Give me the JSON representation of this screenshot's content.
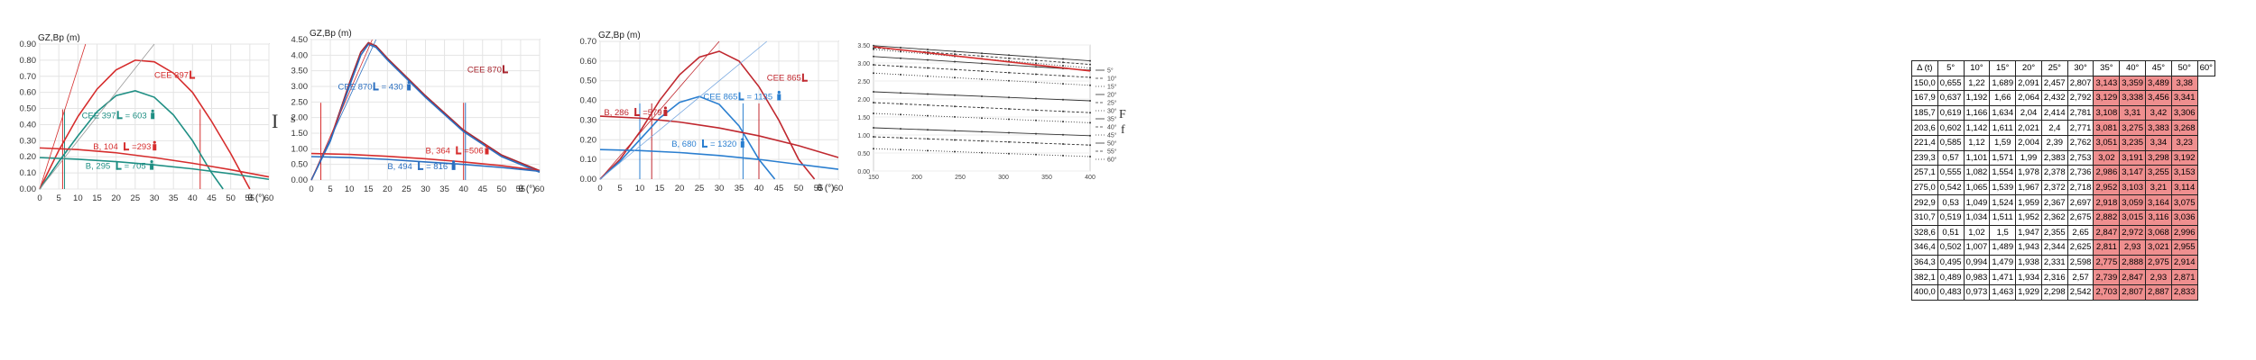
{
  "chart_data": [
    {
      "type": "line",
      "ylabel": "GZ,Bp (m)",
      "xlabel": "θ (°)",
      "xlim": [
        0,
        60
      ],
      "ylim": [
        0,
        0.9
      ],
      "xticks": [
        0,
        5,
        10,
        15,
        20,
        25,
        30,
        35,
        40,
        45,
        50,
        55,
        60
      ],
      "yticks": [
        0,
        0.1,
        0.2,
        0.3,
        0.4,
        0.5,
        0.6,
        0.7,
        0.8,
        0.9
      ],
      "ytick_labels": [
        "0.00",
        "0.10",
        "0.20",
        "0.30",
        "0.40",
        "0.50",
        "0.60",
        "0.70",
        "0.80",
        "0.90"
      ],
      "series": [
        {
          "color": "#d62d2d",
          "x": [
            0,
            5,
            10,
            15,
            20,
            25,
            30,
            35,
            40,
            45,
            50,
            55
          ],
          "y": [
            0,
            0.24,
            0.45,
            0.62,
            0.74,
            0.8,
            0.79,
            0.72,
            0.6,
            0.42,
            0.22,
            0
          ]
        },
        {
          "color": "#1f8f84",
          "x": [
            0,
            5,
            10,
            15,
            20,
            25,
            30,
            35,
            40,
            45,
            48
          ],
          "y": [
            0,
            0.17,
            0.33,
            0.48,
            0.58,
            0.61,
            0.57,
            0.46,
            0.3,
            0.1,
            0
          ]
        },
        {
          "color": "#d62d2d",
          "x": [
            0,
            10,
            20,
            30,
            40,
            50,
            60
          ],
          "y": [
            0.255,
            0.245,
            0.225,
            0.195,
            0.16,
            0.12,
            0.075
          ]
        },
        {
          "color": "#1f8f84",
          "x": [
            0,
            10,
            20,
            30,
            40,
            50,
            60
          ],
          "y": [
            0.195,
            0.185,
            0.17,
            0.15,
            0.125,
            0.095,
            0.06
          ]
        },
        {
          "color": "#d62d2d",
          "x": [
            0,
            12
          ],
          "y": [
            0,
            0.95
          ],
          "style": "thin"
        },
        {
          "color": "#999999",
          "x": [
            0,
            30
          ],
          "y": [
            0,
            0.95
          ],
          "style": "thin"
        }
      ],
      "verticals": [
        {
          "x": 6,
          "color": "#d62d2d"
        },
        {
          "x": 6.5,
          "color": "#1f8f84"
        },
        {
          "x": 42,
          "color": "#d62d2d"
        }
      ],
      "annotations": [
        {
          "text": "CEE 397",
          "x": 30,
          "y": 0.69,
          "color": "#d62d2d",
          "icon": "boat-left-icon"
        },
        {
          "text": "CEE 397",
          "x": 11,
          "y": 0.44,
          "color": "#1f8f84",
          "icon": "boat-left-icon",
          "suffix": "= 603",
          "suffix_icon": "person-icon"
        },
        {
          "text": "B, 104",
          "x": 14,
          "y": 0.245,
          "color": "#d62d2d",
          "icon": "boat-left-icon",
          "suffix": "=293",
          "suffix_icon": "person-icon"
        },
        {
          "text": "B, 295",
          "x": 12,
          "y": 0.125,
          "color": "#1f8f84",
          "icon": "boat-left-icon",
          "suffix": "= 705",
          "suffix_icon": "person-icon"
        }
      ]
    },
    {
      "type": "line",
      "ylabel": "GZ,Bp (m)",
      "xlabel": "θ (°)",
      "xlim": [
        0,
        60
      ],
      "ylim": [
        0,
        4.5
      ],
      "xticks": [
        0,
        5,
        10,
        15,
        20,
        25,
        30,
        35,
        40,
        45,
        50,
        55,
        60
      ],
      "yticks": [
        0,
        0.5,
        1,
        1.5,
        2,
        2.5,
        3,
        3.5,
        4,
        4.5
      ],
      "ytick_labels": [
        "0.00",
        "0.50",
        "1.00",
        "1.50",
        "2.00",
        "2.50",
        "3.00",
        "3.50",
        "4.00",
        "4.50"
      ],
      "series": [
        {
          "color": "#a8262f",
          "x": [
            0,
            5,
            10,
            13,
            15,
            17,
            20,
            25,
            30,
            40,
            50,
            60
          ],
          "y": [
            0,
            1.3,
            3.1,
            4.1,
            4.4,
            4.3,
            3.9,
            3.3,
            2.7,
            1.6,
            0.8,
            0.3
          ]
        },
        {
          "color": "#2b6fc0",
          "x": [
            0,
            5,
            10,
            13,
            15,
            17,
            20,
            25,
            30,
            40,
            50,
            60
          ],
          "y": [
            0,
            1.25,
            3.0,
            4.0,
            4.35,
            4.25,
            3.85,
            3.25,
            2.65,
            1.55,
            0.75,
            0.25
          ]
        },
        {
          "color": "#d62d2d",
          "x": [
            0,
            10,
            20,
            30,
            40,
            50,
            60
          ],
          "y": [
            0.85,
            0.82,
            0.76,
            0.68,
            0.58,
            0.46,
            0.3
          ]
        },
        {
          "color": "#2b6fc0",
          "x": [
            0,
            10,
            20,
            30,
            40,
            50,
            60
          ],
          "y": [
            0.75,
            0.72,
            0.66,
            0.58,
            0.5,
            0.4,
            0.28
          ]
        },
        {
          "color": "#d62d2d",
          "x": [
            0,
            16
          ],
          "y": [
            0,
            4.5
          ],
          "style": "thin"
        },
        {
          "color": "#2b6fc0",
          "x": [
            0,
            17
          ],
          "y": [
            0,
            4.5
          ],
          "style": "thin"
        }
      ],
      "verticals": [
        {
          "x": 2.5,
          "color": "#d62d2d"
        },
        {
          "x": 40,
          "color": "#d62d2d"
        },
        {
          "x": 40.5,
          "color": "#2b6fc0"
        }
      ],
      "annotations": [
        {
          "text": "CEE 870",
          "x": 7,
          "y": 2.9,
          "color": "#2b6fc0",
          "icon": "boat-left-icon",
          "suffix": "= 430",
          "suffix_icon": "person-icon"
        },
        {
          "text": "CEE 870",
          "x": 41,
          "y": 3.45,
          "color": "#a8262f",
          "icon": "boat-left-icon"
        },
        {
          "text": "B, 364",
          "x": 30,
          "y": 0.85,
          "color": "#d62d2d",
          "icon": "boat-left-icon",
          "suffix": "=506",
          "suffix_icon": "person-icon"
        },
        {
          "text": "B, 494",
          "x": 20,
          "y": 0.35,
          "color": "#2b6fc0",
          "icon": "boat-left-icon",
          "suffix": "= 816",
          "suffix_icon": "person-icon"
        }
      ]
    },
    {
      "type": "line",
      "ylabel": "GZ,Bp (m)",
      "xlabel": "θ (°)",
      "xlim": [
        0,
        60
      ],
      "ylim": [
        0,
        0.7
      ],
      "xticks": [
        0,
        5,
        10,
        15,
        20,
        25,
        30,
        35,
        40,
        45,
        50,
        55,
        60
      ],
      "yticks": [
        0,
        0.1,
        0.2,
        0.3,
        0.4,
        0.5,
        0.6,
        0.7
      ],
      "ytick_labels": [
        "0.00",
        "0.10",
        "0.20",
        "0.30",
        "0.40",
        "0.50",
        "0.60",
        "0.70"
      ],
      "series": [
        {
          "color": "#c0282f",
          "x": [
            0,
            5,
            10,
            15,
            20,
            25,
            30,
            35,
            40,
            45,
            50,
            54
          ],
          "y": [
            0,
            0.1,
            0.24,
            0.4,
            0.53,
            0.62,
            0.65,
            0.6,
            0.47,
            0.3,
            0.1,
            0
          ]
        },
        {
          "color": "#2b7fd0",
          "x": [
            0,
            5,
            10,
            15,
            20,
            25,
            30,
            35,
            40,
            44
          ],
          "y": [
            0,
            0.09,
            0.2,
            0.31,
            0.39,
            0.42,
            0.38,
            0.27,
            0.1,
            0
          ]
        },
        {
          "color": "#c0282f",
          "x": [
            0,
            10,
            20,
            30,
            40,
            50,
            60
          ],
          "y": [
            0.32,
            0.31,
            0.29,
            0.26,
            0.22,
            0.17,
            0.11
          ]
        },
        {
          "color": "#2b7fd0",
          "x": [
            0,
            10,
            20,
            30,
            40,
            50,
            60
          ],
          "y": [
            0.15,
            0.145,
            0.135,
            0.12,
            0.1,
            0.075,
            0.05
          ]
        },
        {
          "color": "#c0282f",
          "x": [
            0,
            30
          ],
          "y": [
            0,
            0.72
          ],
          "style": "thin"
        },
        {
          "color": "#7aa9e0",
          "x": [
            0,
            42
          ],
          "y": [
            0,
            0.72
          ],
          "style": "thin"
        }
      ],
      "verticals": [
        {
          "x": 10,
          "color": "#2b7fd0"
        },
        {
          "x": 13,
          "color": "#c0282f"
        },
        {
          "x": 40,
          "color": "#c0282f"
        },
        {
          "x": 36,
          "color": "#2b7fd0"
        }
      ],
      "annotations": [
        {
          "text": "CEE 865",
          "x": 42,
          "y": 0.5,
          "color": "#c0282f",
          "icon": "boat-left-icon"
        },
        {
          "text": "CEE 865",
          "x": 26,
          "y": 0.405,
          "color": "#2b7fd0",
          "icon": "boat-left-icon",
          "suffix": "= 1135",
          "suffix_icon": "person-icon"
        },
        {
          "text": "B, 286",
          "x": 1,
          "y": 0.325,
          "color": "#c0282f",
          "icon": "boat-left-icon",
          "suffix": "=579",
          "suffix_icon": "person-icon"
        },
        {
          "text": "B, 680",
          "x": 18,
          "y": 0.165,
          "color": "#2b7fd0",
          "icon": "boat-left-icon",
          "suffix": "= 1320",
          "suffix_icon": "person-icon"
        }
      ]
    },
    {
      "type": "line",
      "ylim": [
        0,
        3.5
      ],
      "yticks": [
        0,
        0.5,
        1,
        1.5,
        2,
        2.5,
        3,
        3.5
      ],
      "ytick_labels": [
        "0.00",
        "0.50",
        "1.00",
        "1.50",
        "2.00",
        "2.50",
        "3.00",
        "3.50"
      ],
      "xticks": [
        150,
        200,
        250,
        300,
        350,
        400
      ],
      "xlim": [
        150,
        400
      ],
      "legend": [
        "5°",
        "10°",
        "15°",
        "20°",
        "25°",
        "30°",
        "35°",
        "40°",
        "45°",
        "50°",
        "55°",
        "60°"
      ],
      "legend_position": "right",
      "series": [
        {
          "name": "5°",
          "x": [
            150,
            400
          ],
          "y": [
            3.48,
            3.06
          ]
        },
        {
          "name": "10°",
          "x": [
            150,
            400
          ],
          "y": [
            3.42,
            2.96
          ]
        },
        {
          "name": "15°",
          "x": [
            150,
            400
          ],
          "y": [
            3.38,
            2.86
          ]
        },
        {
          "name": "20°",
          "x": [
            150,
            400
          ],
          "y": [
            3.18,
            2.8
          ]
        },
        {
          "name": "25°",
          "x": [
            150,
            400
          ],
          "y": [
            2.95,
            2.6
          ]
        },
        {
          "name": "30°",
          "x": [
            150,
            400
          ],
          "y": [
            2.72,
            2.38
          ]
        },
        {
          "name": "35°",
          "x": [
            150,
            400
          ],
          "y": [
            2.2,
            1.95
          ]
        },
        {
          "name": "40°",
          "x": [
            150,
            400
          ],
          "y": [
            1.9,
            1.62
          ]
        },
        {
          "name": "45°",
          "x": [
            150,
            400
          ],
          "y": [
            1.6,
            1.34
          ]
        },
        {
          "name": "50°",
          "x": [
            150,
            400
          ],
          "y": [
            1.2,
            0.98
          ]
        },
        {
          "name": "55°",
          "x": [
            150,
            400
          ],
          "y": [
            0.95,
            0.72
          ]
        },
        {
          "name": "60°",
          "x": [
            150,
            400
          ],
          "y": [
            0.62,
            0.4
          ]
        },
        {
          "name": "",
          "color": "#d62d2d",
          "x": [
            150,
            400
          ],
          "y": [
            3.45,
            2.78
          ]
        }
      ]
    },
    {
      "type": "table",
      "headers": [
        "Δ (t)",
        "5°",
        "10°",
        "15°",
        "20°",
        "25°",
        "30°",
        "35°",
        "40°",
        "45°",
        "50°",
        "60°"
      ],
      "rows": [
        [
          "150,0",
          "0,655",
          "1,22",
          "1,689",
          "2,091",
          "2,457",
          "2,807",
          "3,143",
          "3,359",
          "3,489",
          "3,38"
        ],
        [
          "167,9",
          "0,637",
          "1,192",
          "1,66",
          "2,064",
          "2,432",
          "2,792",
          "3,129",
          "3,338",
          "3,456",
          "3,341"
        ],
        [
          "185,7",
          "0,619",
          "1,166",
          "1,634",
          "2,04",
          "2,414",
          "2,781",
          "3,108",
          "3,31",
          "3,42",
          "3,306"
        ],
        [
          "203,6",
          "0,602",
          "1,142",
          "1,611",
          "2,021",
          "2,4",
          "2,771",
          "3,081",
          "3,275",
          "3,383",
          "3,268"
        ],
        [
          "221,4",
          "0,585",
          "1,12",
          "1,59",
          "2,004",
          "2,39",
          "2,762",
          "3,051",
          "3,235",
          "3,34",
          "3,23"
        ],
        [
          "239,3",
          "0,57",
          "1,101",
          "1,571",
          "1,99",
          "2,383",
          "2,753",
          "3,02",
          "3,191",
          "3,298",
          "3,192"
        ],
        [
          "257,1",
          "0,555",
          "1,082",
          "1,554",
          "1,978",
          "2,378",
          "2,736",
          "2,986",
          "3,147",
          "3,255",
          "3,153"
        ],
        [
          "275,0",
          "0,542",
          "1,065",
          "1,539",
          "1,967",
          "2,372",
          "2,718",
          "2,952",
          "3,103",
          "3,21",
          "3,114"
        ],
        [
          "292,9",
          "0,53",
          "1,049",
          "1,524",
          "1,959",
          "2,367",
          "2,697",
          "2,918",
          "3,059",
          "3,164",
          "3,075"
        ],
        [
          "310,7",
          "0,519",
          "1,034",
          "1,511",
          "1,952",
          "2,362",
          "2,675",
          "2,882",
          "3,015",
          "3,116",
          "3,036"
        ],
        [
          "328,6",
          "0,51",
          "1,02",
          "1,5",
          "1,947",
          "2,355",
          "2,65",
          "2,847",
          "2,972",
          "3,068",
          "2,996"
        ],
        [
          "346,4",
          "0,502",
          "1,007",
          "1,489",
          "1,943",
          "2,344",
          "2,625",
          "2,811",
          "2,93",
          "3,021",
          "2,955"
        ],
        [
          "364,3",
          "0,495",
          "0,994",
          "1,479",
          "1,938",
          "2,331",
          "2,598",
          "2,775",
          "2,888",
          "2,975",
          "2,914"
        ],
        [
          "382,1",
          "0,489",
          "0,983",
          "1,471",
          "1,934",
          "2,316",
          "2,57",
          "2,739",
          "2,847",
          "2,93",
          "2,871"
        ],
        [
          "400,0",
          "0,483",
          "0,973",
          "1,463",
          "1,929",
          "2,298",
          "2,542",
          "2,703",
          "2,807",
          "2,887",
          "2,833"
        ]
      ],
      "highlight_from_col": 7
    }
  ],
  "stray": {
    "char1": "I",
    "char2": "s",
    "char3": "F",
    "char4": "f"
  }
}
